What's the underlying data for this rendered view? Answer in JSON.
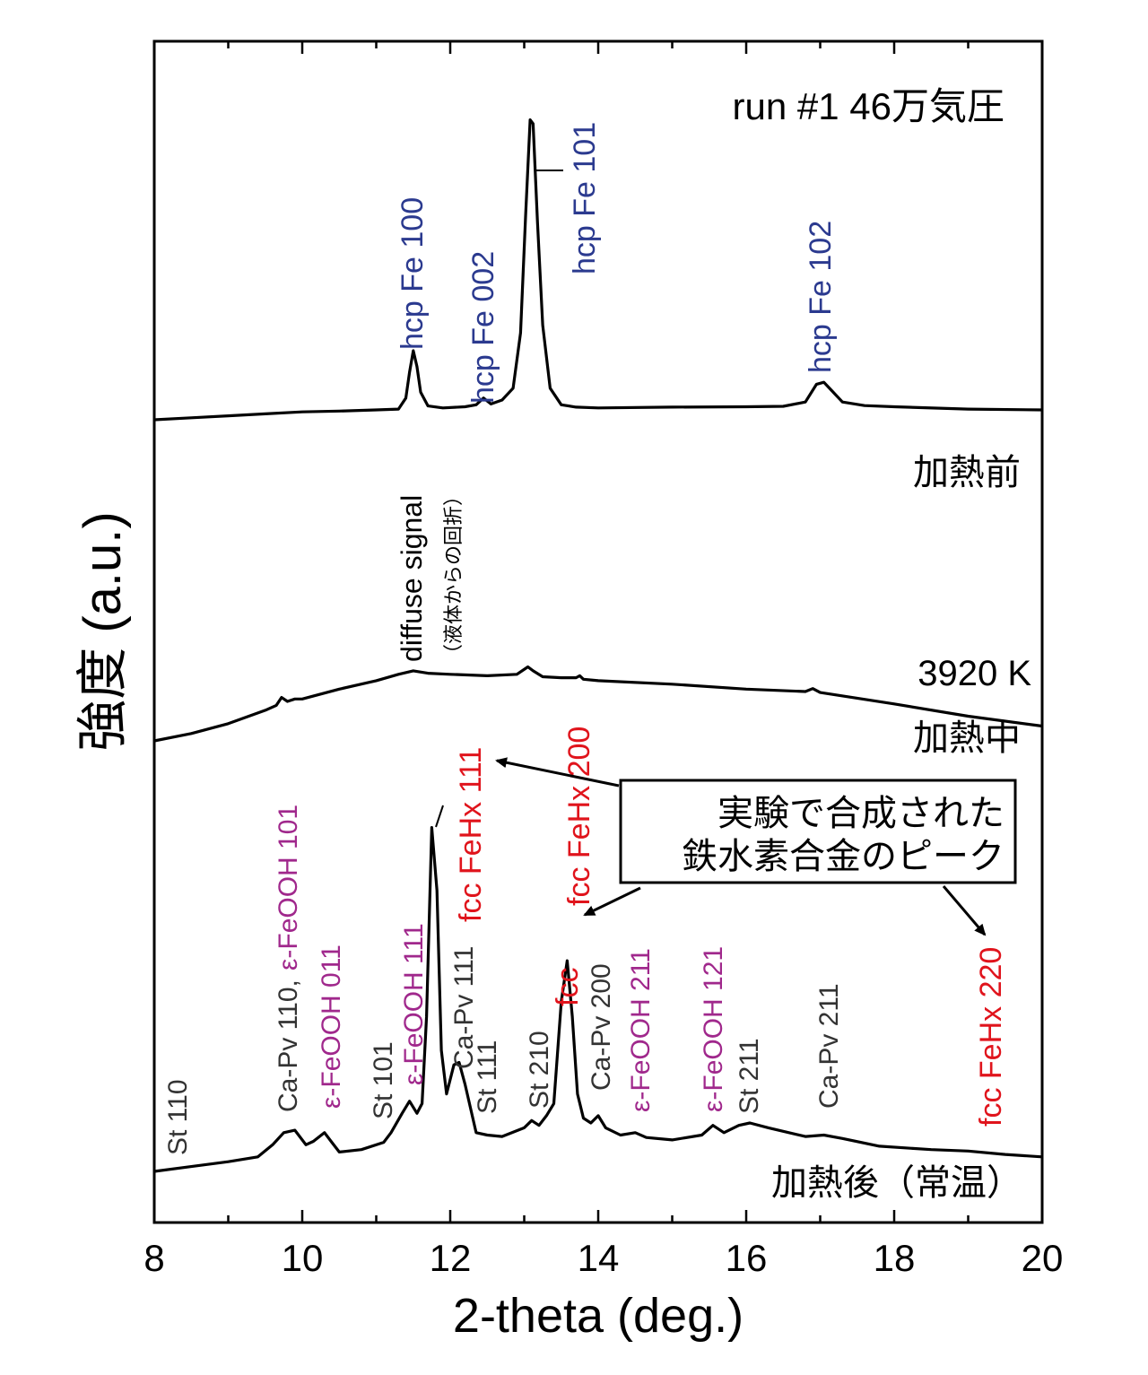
{
  "chart_data": {
    "type": "line",
    "title": "run #1 46万気圧",
    "xlabel": "2-theta (deg.)",
    "ylabel": "強度 (a.u.)",
    "xlim": [
      8,
      20
    ],
    "xticks": [
      8,
      10,
      12,
      14,
      16,
      18,
      20
    ],
    "grid": false,
    "series": [
      {
        "name": "加熱前",
        "color": "#000000",
        "x": [
          8.0,
          8.5,
          9.0,
          9.5,
          10.0,
          10.5,
          11.0,
          11.3,
          11.4,
          11.45,
          11.5,
          11.55,
          11.6,
          11.7,
          11.9,
          12.2,
          12.35,
          12.45,
          12.55,
          12.7,
          12.85,
          12.95,
          13.02,
          13.08,
          13.12,
          13.18,
          13.25,
          13.35,
          13.5,
          13.7,
          14.0,
          15.0,
          16.0,
          16.5,
          16.8,
          16.95,
          17.05,
          17.15,
          17.3,
          17.6,
          18.0,
          19.0,
          20.0
        ],
        "y": [
          1.0,
          1.05,
          1.1,
          1.15,
          1.2,
          1.22,
          1.25,
          1.27,
          1.55,
          2.2,
          2.75,
          2.35,
          1.7,
          1.35,
          1.3,
          1.33,
          1.38,
          1.55,
          1.4,
          1.5,
          1.8,
          3.2,
          6.2,
          8.6,
          8.5,
          6.0,
          3.4,
          1.8,
          1.38,
          1.32,
          1.3,
          1.32,
          1.33,
          1.34,
          1.45,
          1.9,
          1.95,
          1.75,
          1.45,
          1.36,
          1.33,
          1.27,
          1.25
        ]
      },
      {
        "name": "加熱中",
        "color": "#000000",
        "x": [
          8.0,
          8.5,
          9.0,
          9.5,
          9.65,
          9.72,
          9.8,
          9.9,
          10.0,
          10.5,
          11.0,
          11.3,
          11.5,
          11.7,
          12.0,
          12.5,
          12.9,
          13.05,
          13.12,
          13.25,
          13.5,
          13.7,
          13.75,
          13.8,
          14.0,
          15.0,
          16.0,
          16.8,
          16.9,
          17.0,
          18.0,
          19.0,
          20.0
        ],
        "y": [
          0.0,
          0.15,
          0.35,
          0.62,
          0.72,
          0.88,
          0.8,
          0.85,
          0.85,
          1.05,
          1.22,
          1.35,
          1.42,
          1.37,
          1.35,
          1.32,
          1.35,
          1.5,
          1.42,
          1.3,
          1.28,
          1.28,
          1.32,
          1.25,
          1.22,
          1.15,
          1.05,
          1.0,
          1.06,
          0.98,
          0.75,
          0.5,
          0.3
        ]
      },
      {
        "name": "加熱後（常温）",
        "color": "#000000",
        "x": [
          8.0,
          8.5,
          9.0,
          9.4,
          9.6,
          9.75,
          9.9,
          10.05,
          10.15,
          10.3,
          10.4,
          10.5,
          10.8,
          11.1,
          11.2,
          11.35,
          11.45,
          11.55,
          11.62,
          11.68,
          11.75,
          11.82,
          11.88,
          11.95,
          12.05,
          12.12,
          12.2,
          12.35,
          12.5,
          12.7,
          13.0,
          13.1,
          13.2,
          13.3,
          13.4,
          13.5,
          13.58,
          13.65,
          13.72,
          13.8,
          13.9,
          14.0,
          14.1,
          14.3,
          14.5,
          14.65,
          15.0,
          15.4,
          15.55,
          15.7,
          15.9,
          16.05,
          16.3,
          16.8,
          17.05,
          17.3,
          17.8,
          18.5,
          19.0,
          19.5,
          20.0
        ],
        "y": [
          0.0,
          0.1,
          0.2,
          0.3,
          0.55,
          0.8,
          0.85,
          0.55,
          0.62,
          0.8,
          0.6,
          0.4,
          0.45,
          0.6,
          0.8,
          1.2,
          1.45,
          1.2,
          1.4,
          3.2,
          7.1,
          5.8,
          2.5,
          1.6,
          2.2,
          2.25,
          1.8,
          0.8,
          0.75,
          0.72,
          0.9,
          1.05,
          0.95,
          1.15,
          1.4,
          3.5,
          4.35,
          3.2,
          1.6,
          1.1,
          1.0,
          1.15,
          0.9,
          0.75,
          0.8,
          0.7,
          0.65,
          0.75,
          0.95,
          0.8,
          0.95,
          1.0,
          0.9,
          0.72,
          0.75,
          0.68,
          0.52,
          0.45,
          0.42,
          0.35,
          0.3
        ]
      }
    ],
    "panel_labels": [
      {
        "text": "加熱前",
        "series": "加熱前"
      },
      {
        "text": "3920 K",
        "series": "加熱中"
      },
      {
        "text": "加熱中",
        "series": "加熱中"
      },
      {
        "text": "加熱後（常温）",
        "series": "加熱後（常温）"
      }
    ],
    "peak_labels": [
      {
        "text": "hcp Fe 100",
        "x": 11.5,
        "color": "#2b3a8f"
      },
      {
        "text": "hcp Fe 002",
        "x": 12.45,
        "color": "#2b3a8f"
      },
      {
        "text": "hcp Fe 101",
        "x": 13.8,
        "color": "#2b3a8f"
      },
      {
        "text": "hcp Fe 102",
        "x": 17.0,
        "color": "#2b3a8f"
      },
      {
        "text": "diffuse signal",
        "x": 11.3,
        "color": "#000000"
      },
      {
        "text": "（液体からの回折）",
        "x": 11.95,
        "color": "#000000"
      },
      {
        "text": "St 110",
        "x": 8.3,
        "color": "#333333"
      },
      {
        "text": "Ca-Pv 110,",
        "x": 9.8,
        "color": "#333333"
      },
      {
        "text": "ε-FeOOH 101",
        "x": 9.8,
        "color": "#a0288c"
      },
      {
        "text": "ε-FeOOH 011",
        "x": 10.35,
        "color": "#a0288c"
      },
      {
        "text": "St 101",
        "x": 11.0,
        "color": "#333333"
      },
      {
        "text": "ε-FeOOH 111",
        "x": 11.45,
        "color": "#a0288c"
      },
      {
        "text": "Ca-Pv 111",
        "x": 12.05,
        "color": "#333333"
      },
      {
        "text": "St 111",
        "x": 12.4,
        "color": "#333333"
      },
      {
        "text": "fcc FeHx 111",
        "x": 12.5,
        "color": "#e0141c"
      },
      {
        "text": "St 210",
        "x": 13.1,
        "color": "#333333"
      },
      {
        "text": "fcc FeHx 200",
        "x": 13.55,
        "color": "#e0141c"
      },
      {
        "text": "fcc",
        "x": 13.6,
        "color": "#e0141c"
      },
      {
        "text": "Ca-Pv 200",
        "x": 13.95,
        "color": "#333333"
      },
      {
        "text": "ε-FeOOH 211",
        "x": 14.55,
        "color": "#a0288c"
      },
      {
        "text": "ε-FeOOH 121",
        "x": 15.55,
        "color": "#a0288c"
      },
      {
        "text": "St 211",
        "x": 15.9,
        "color": "#333333"
      },
      {
        "text": "Ca-Pv 211",
        "x": 17.05,
        "color": "#333333"
      },
      {
        "text": "fcc FeHx 220",
        "x": 19.2,
        "color": "#e0141c"
      }
    ],
    "annotation_box": {
      "lines": [
        "実験で合成された",
        "鉄水素合金のピーク"
      ]
    }
  }
}
